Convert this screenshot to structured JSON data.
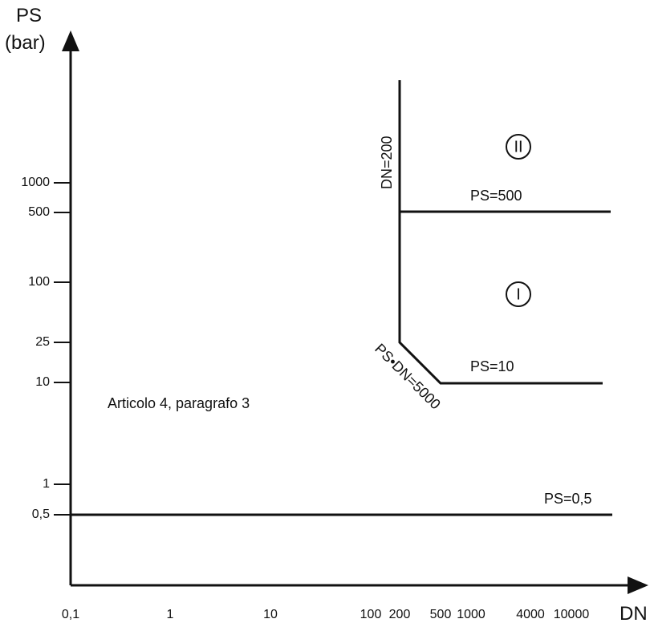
{
  "axes": {
    "y_title_top": "PS",
    "y_title_unit": "(bar)",
    "x_title": "DN"
  },
  "y_ticks": [
    "1000",
    "500",
    "100",
    "25",
    "10",
    "1",
    "0,5"
  ],
  "x_ticks": [
    "0,1",
    "1",
    "10",
    "100",
    "200",
    "500",
    "1000",
    "4000",
    "10000"
  ],
  "boundaries": {
    "ps_500": "PS=500",
    "ps_10": "PS=10",
    "ps_05": "PS=0,5",
    "dn_200": "DN=200",
    "ps_dn": "PS•DN=5000"
  },
  "regions": {
    "category_two": "II",
    "category_one": "I"
  },
  "article_note": "Articolo 4, paragrafo 3",
  "colors": {
    "ink": "#111111",
    "background": "#ffffff"
  }
}
